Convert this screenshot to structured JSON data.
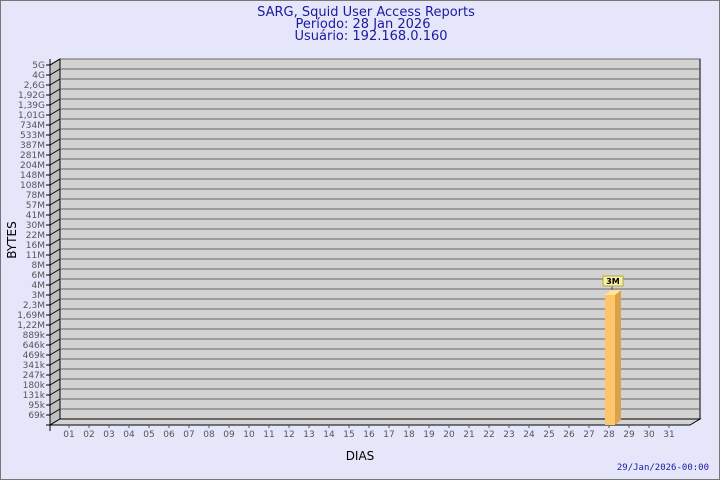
{
  "chart_data": {
    "type": "bar",
    "title": [
      "SARG, Squid User Access Reports",
      "Período: 28 Jan 2026",
      "Usuário: 192.168.0.160"
    ],
    "xlabel": "DIAS",
    "ylabel": "BYTES",
    "yscale": "log",
    "y_ticks": [
      "5G",
      "4G",
      "2,6G",
      "1,92G",
      "1,39G",
      "1,01G",
      "734M",
      "533M",
      "387M",
      "281M",
      "204M",
      "148M",
      "108M",
      "78M",
      "57M",
      "41M",
      "30M",
      "22M",
      "16M",
      "11M",
      "8M",
      "6M",
      "4M",
      "3M",
      "2,3M",
      "1,69M",
      "1,22M",
      "889k",
      "646k",
      "469k",
      "341k",
      "247k",
      "180k",
      "131k",
      "95k",
      "69k"
    ],
    "categories": [
      "01",
      "02",
      "03",
      "04",
      "05",
      "06",
      "07",
      "08",
      "09",
      "10",
      "11",
      "12",
      "13",
      "14",
      "15",
      "16",
      "17",
      "18",
      "19",
      "20",
      "21",
      "22",
      "23",
      "24",
      "25",
      "26",
      "27",
      "28",
      "29",
      "30",
      "31"
    ],
    "bars": [
      {
        "category": "28",
        "value": "3M",
        "label": "3M"
      }
    ],
    "grid": true,
    "footer": "29/Jan/2026-00:00",
    "colors": {
      "background": "#e6e6fa",
      "plot": "#d3d3d3",
      "bar": "#ffc56a",
      "bar_side": "#dba24c",
      "bar_top": "#ffe49a",
      "label_box": "#f5f0a8",
      "title": "#1a1aa0"
    }
  }
}
